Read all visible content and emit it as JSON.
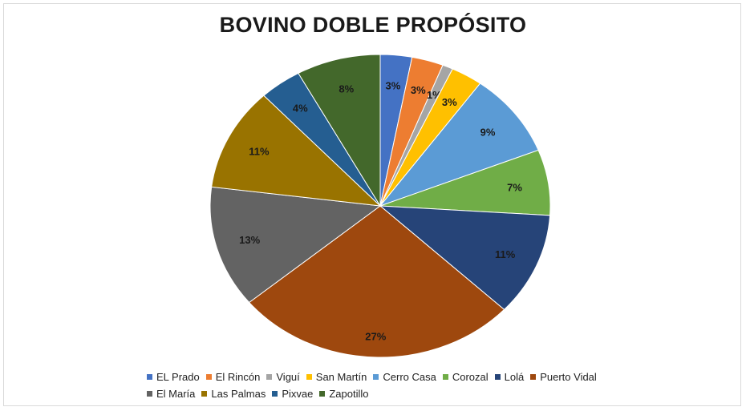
{
  "chart_data": {
    "type": "pie",
    "title": "BOVINO DOBLE PROPÓSITO",
    "legend_position": "bottom",
    "slices": [
      {
        "label": "EL Prado",
        "value": 3,
        "display": "3%",
        "color": "#4472c4"
      },
      {
        "label": "El Rincón",
        "value": 3,
        "display": "3%",
        "color": "#ed7d31"
      },
      {
        "label": "Viguí",
        "value": 1,
        "display": "1%",
        "color": "#a5a5a5"
      },
      {
        "label": "San Martín",
        "value": 3,
        "display": "3%",
        "color": "#ffc000"
      },
      {
        "label": "Cerro Casa",
        "value": 9,
        "display": "9%",
        "color": "#5b9bd5"
      },
      {
        "label": "Corozal",
        "value": 7,
        "display": "7%",
        "color": "#70ad47"
      },
      {
        "label": "Lolá",
        "value": 11,
        "display": "11%",
        "color": "#264478"
      },
      {
        "label": "Puerto Vidal",
        "value": 27,
        "display": "27%",
        "color": "#9e480e"
      },
      {
        "label": "El María",
        "value": 13,
        "display": "13%",
        "color": "#636363"
      },
      {
        "label": "Las Palmas",
        "value": 11,
        "display": "11%",
        "color": "#997300"
      },
      {
        "label": "Pixvae",
        "value": 4,
        "display": "4%",
        "color": "#255e91"
      },
      {
        "label": "Zapotillo",
        "value": 8,
        "display": "8%",
        "color": "#43682b"
      }
    ]
  }
}
